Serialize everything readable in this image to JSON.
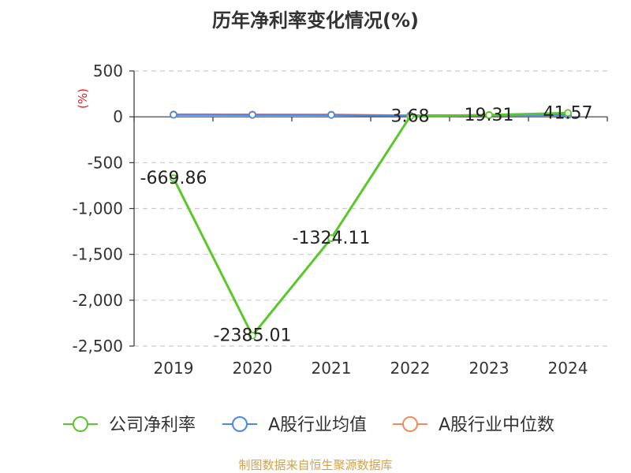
{
  "title": "历年净利率变化情况(%)",
  "source": "制图数据来自恒生聚源数据库",
  "chart_data": {
    "type": "line",
    "title": "历年净利率变化情况(%)",
    "ylabel": "(%)",
    "categories": [
      "2019",
      "2020",
      "2021",
      "2022",
      "2023",
      "2024"
    ],
    "y_ticks": [
      500,
      0,
      -500,
      -1000,
      -1500,
      -2000,
      -2500
    ],
    "y_tick_labels": [
      "500",
      "0",
      "-500",
      "-1,000",
      "-1,500",
      "-2,000",
      "-2,500"
    ],
    "ylim": [
      -2500,
      500
    ],
    "grid": true,
    "legend_position": "bottom",
    "series": [
      {
        "name": "公司净利率",
        "color": "#5ac72a",
        "values": [
          -669.86,
          -2385.01,
          -1324.11,
          3.68,
          19.31,
          41.57
        ],
        "labels": [
          "-669.86",
          "-2385.01",
          "-1324.11",
          "3.68",
          "19.31",
          "41.57"
        ]
      },
      {
        "name": "A股行业均值",
        "color": "#4f86ea",
        "values": [
          22,
          21,
          20,
          12,
          18,
          20
        ]
      },
      {
        "name": "A股行业中位数",
        "color": "#f08c5a",
        "values": [
          26,
          25,
          24,
          14,
          20,
          20
        ]
      }
    ]
  }
}
